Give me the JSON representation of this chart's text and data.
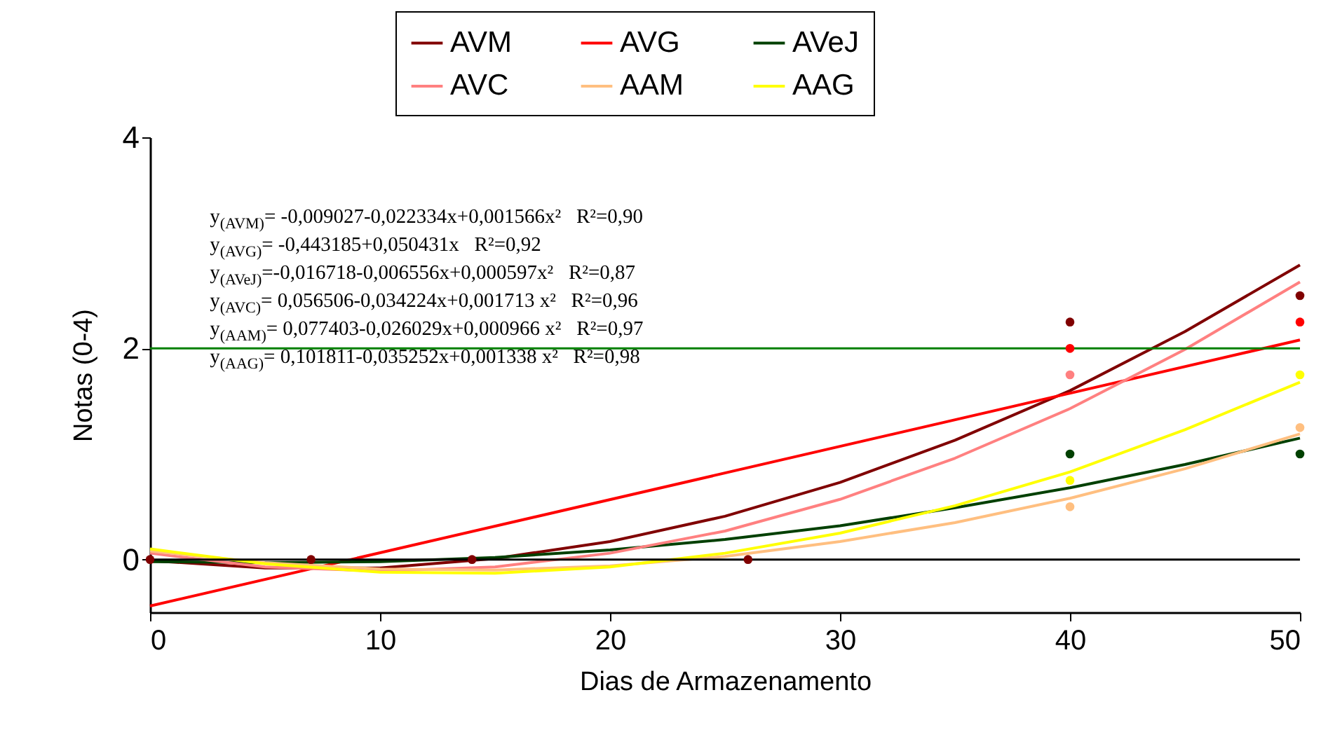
{
  "chart_data": {
    "type": "line",
    "xlabel": "Dias de Armazenamento",
    "ylabel": "Notas (0-4)",
    "xlim": [
      0,
      50
    ],
    "xticks": [
      0,
      10,
      20,
      30,
      40,
      50
    ],
    "ylim": [
      -0.5,
      4
    ],
    "yticks": [
      0,
      2,
      4
    ],
    "grid": false,
    "legend": "top",
    "series": [
      {
        "type": "scatter",
        "color": "#ff0000",
        "x": [
          40,
          50
        ],
        "values": [
          2.0,
          2.25
        ]
      },
      {
        "type": "scatter",
        "color": "#004000",
        "x": [
          40,
          50
        ],
        "values": [
          1.0,
          1.0
        ]
      },
      {
        "type": "scatter",
        "color": "#ff8080",
        "x": [
          40
        ],
        "values": [
          1.75
        ]
      },
      {
        "type": "scatter",
        "color": "#ffbf80",
        "x": [
          40,
          50
        ],
        "values": [
          0.5,
          1.25
        ]
      },
      {
        "type": "scatter",
        "color": "#ffff00",
        "x": [
          40,
          50
        ],
        "values": [
          0.75,
          1.75
        ]
      },
      {
        "type": "line",
        "name": "AVM",
        "color": "#800000",
        "x": [
          0,
          5,
          10,
          15,
          20,
          25,
          30,
          35,
          40,
          45,
          50
        ],
        "values": [
          -0.01,
          -0.08,
          -0.08,
          0.01,
          0.17,
          0.41,
          0.73,
          1.13,
          1.6,
          2.16,
          2.79
        ]
      },
      {
        "type": "line",
        "name": "AVG",
        "color": "#ff0000",
        "x": [
          0,
          50
        ],
        "values": [
          -0.44,
          2.08
        ]
      },
      {
        "type": "line",
        "name": "AVeJ",
        "color": "#004000",
        "x": [
          0,
          5,
          10,
          15,
          20,
          25,
          30,
          35,
          40,
          45,
          50
        ],
        "values": [
          -0.02,
          -0.03,
          -0.02,
          0.02,
          0.09,
          0.19,
          0.32,
          0.49,
          0.68,
          0.9,
          1.15
        ]
      },
      {
        "type": "line",
        "name": "AVC",
        "color": "#ff8080",
        "x": [
          0,
          5,
          10,
          15,
          20,
          25,
          30,
          35,
          40,
          45,
          50
        ],
        "values": [
          0.06,
          -0.07,
          -0.11,
          -0.07,
          0.06,
          0.27,
          0.57,
          0.96,
          1.43,
          1.99,
          2.63
        ]
      },
      {
        "type": "line",
        "name": "AAM",
        "color": "#ffbf80",
        "x": [
          0,
          5,
          10,
          15,
          20,
          25,
          30,
          35,
          40,
          45,
          50
        ],
        "values": [
          0.08,
          -0.03,
          -0.09,
          -0.1,
          -0.06,
          0.03,
          0.17,
          0.35,
          0.58,
          0.86,
          1.19
        ]
      },
      {
        "type": "line",
        "name": "AAG",
        "color": "#ffff00",
        "x": [
          0,
          5,
          10,
          15,
          20,
          25,
          30,
          35,
          40,
          45,
          50
        ],
        "values": [
          0.1,
          -0.04,
          -0.12,
          -0.13,
          -0.07,
          0.06,
          0.25,
          0.51,
          0.83,
          1.23,
          1.68
        ]
      },
      {
        "type": "scatter",
        "color": "#800000",
        "x": [
          0,
          7,
          14,
          26,
          40,
          50
        ],
        "values": [
          0,
          0,
          0,
          0,
          2.25,
          2.5
        ]
      }
    ],
    "ref_lines": [
      {
        "axis": "y",
        "value": 0,
        "color": "#000000"
      },
      {
        "axis": "y",
        "value": 2,
        "color": "#008000"
      }
    ],
    "annotations": [
      "y$_{(AVM)}$= -0,009027-0,022334x+0,001566x²   R²=0,90",
      "y$_{(AVG)}$= -0,443185+0,050431x   R²=0,92",
      "y$_{(AVeJ)}$=-0,016718-0,006556x+0,000597x²   R²=0,87",
      "y$_{(AVC)}$= 0,056506-0,034224x+0,001713 x²   R²=0,96",
      "y$_{(AAM)}$= 0,077403-0,026029x+0,000966 x²   R²=0,97",
      "y$_{(AAG)}$= 0,101811-0,035252x+0,001338 x²   R²=0,98"
    ]
  }
}
